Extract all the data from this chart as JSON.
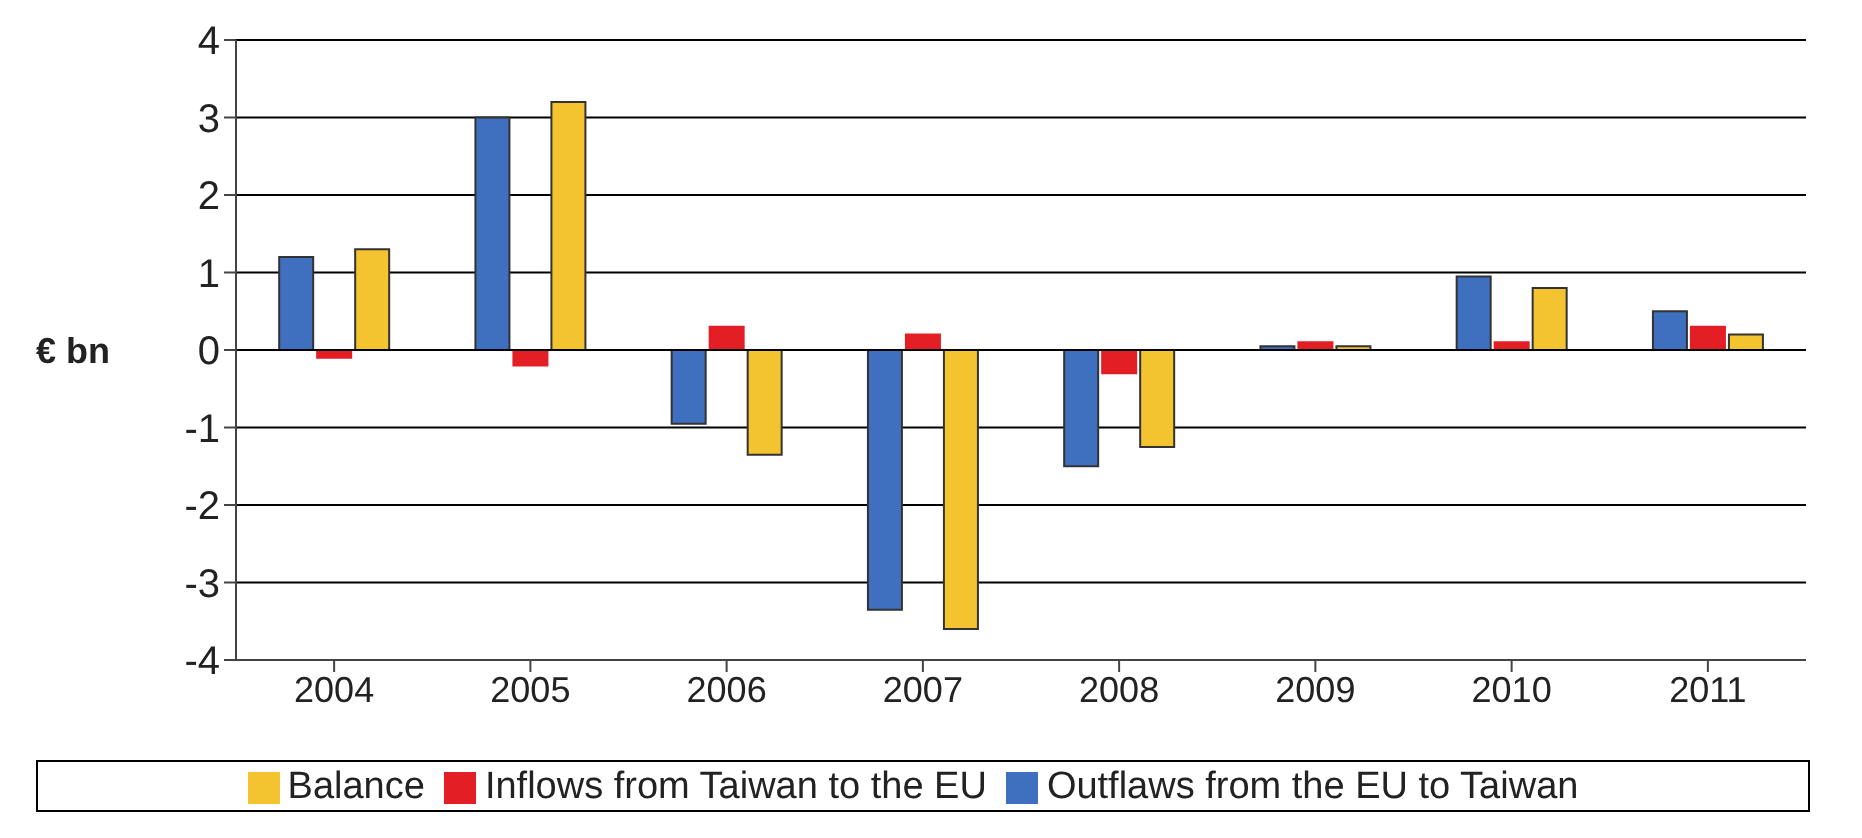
{
  "chart_data": {
    "type": "bar",
    "ylabel": "€ bn",
    "categories": [
      "2004",
      "2005",
      "2006",
      "2007",
      "2008",
      "2009",
      "2010",
      "2011"
    ],
    "series": [
      {
        "name": "Outflaws from the EU to Taiwan",
        "color": "#3f6fbf",
        "values": [
          1.2,
          3.0,
          -0.95,
          -3.35,
          -1.5,
          0.05,
          0.95,
          0.5
        ]
      },
      {
        "name": "Inflows from Taiwan to the EU",
        "color": "#e31e24",
        "values": [
          -0.1,
          -0.2,
          0.3,
          0.2,
          -0.3,
          0.1,
          0.1,
          0.3
        ]
      },
      {
        "name": "Balance",
        "color": "#f4c430",
        "values": [
          1.3,
          3.2,
          -1.35,
          -3.6,
          -1.25,
          0.05,
          0.8,
          0.2
        ]
      }
    ],
    "ylim": [
      -4,
      4
    ],
    "yticks": [
      -4,
      -3,
      -2,
      -1,
      0,
      1,
      2,
      3,
      4
    ],
    "grid": "y",
    "legend": "bottom"
  }
}
